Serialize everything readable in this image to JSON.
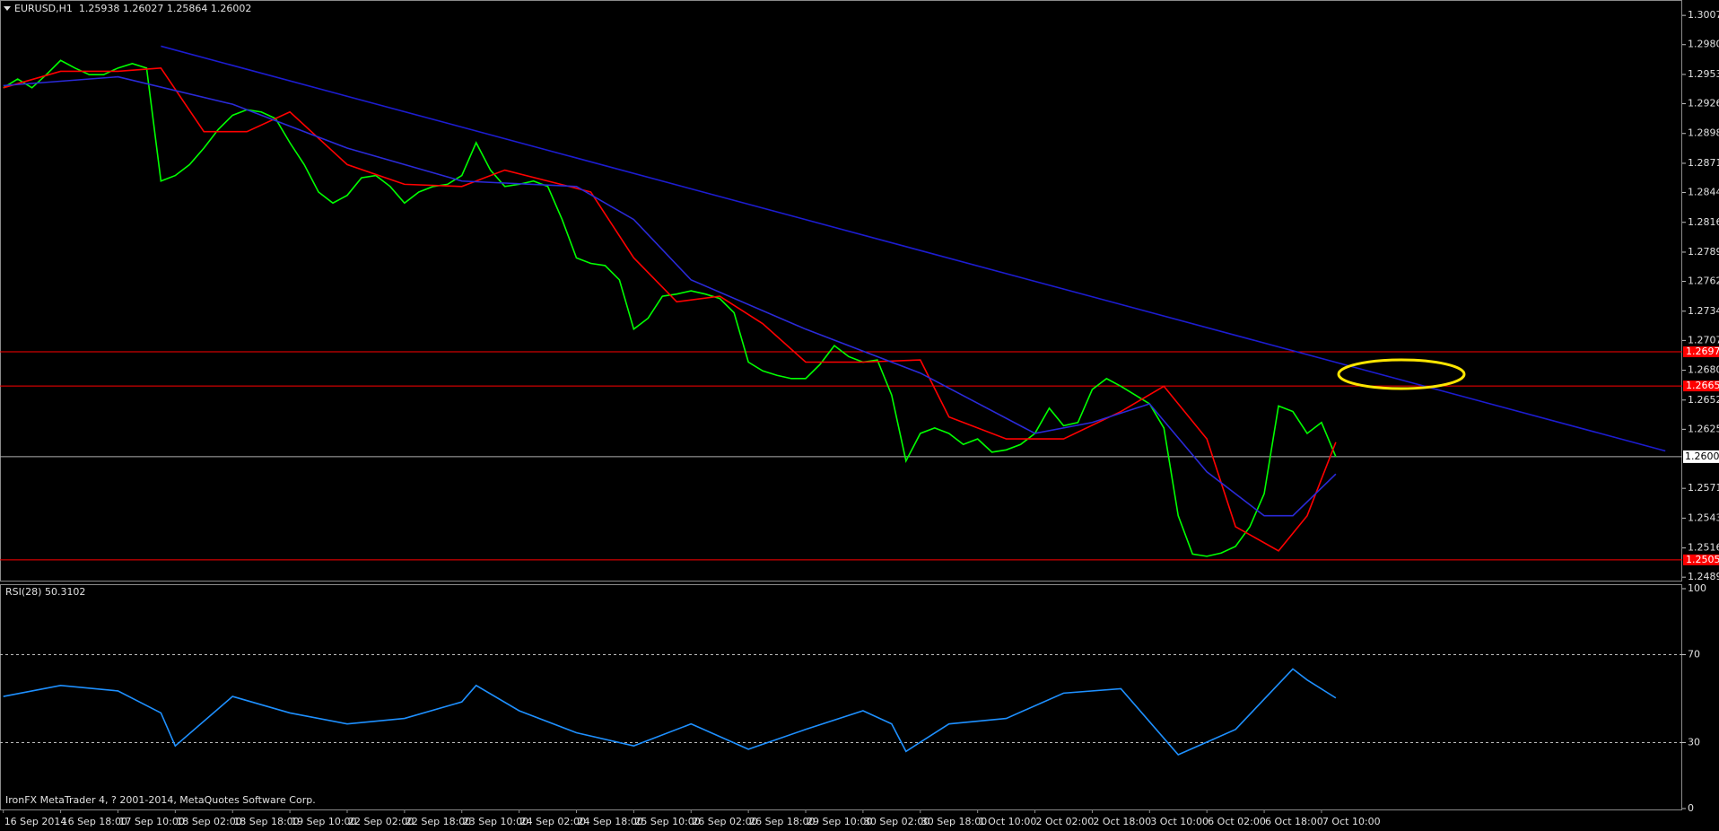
{
  "chart_data": [
    {
      "type": "line",
      "title": "EURUSD,H1  1.25938 1.26027 1.25864 1.26002",
      "categories": [
        "16 Sep 2014",
        null,
        null,
        null,
        "16 Sep 18:00",
        null,
        null,
        null,
        "17 Sep 10:00",
        null,
        null,
        null,
        "18 Sep 02:00",
        null,
        null,
        null,
        "18 Sep 18:00",
        null,
        null,
        null,
        "19 Sep 10:00",
        null,
        null,
        null,
        "22 Sep 02:00",
        null,
        null,
        null,
        "22 Sep 18:00",
        null,
        null,
        null,
        "23 Sep 10:00",
        null,
        null,
        null,
        "24 Sep 02:00",
        null,
        null,
        null,
        "24 Sep 18:00",
        null,
        null,
        null,
        "25 Sep 10:00",
        null,
        null,
        null,
        "26 Sep 02:00",
        null,
        null,
        null,
        "26 Sep 18:00",
        null,
        null,
        null,
        "29 Sep 10:00",
        null,
        null,
        null,
        "30 Sep 02:00",
        null,
        null,
        null,
        "30 Sep 18:00",
        null,
        null,
        null,
        "1 Oct 10:00",
        null,
        null,
        null,
        "2 Oct 02:00",
        null,
        null,
        null,
        "2 Oct 18:00",
        null,
        null,
        null,
        "3 Oct 10:00",
        null,
        null,
        null,
        "6 Oct 02:00",
        null,
        null,
        null,
        "6 Oct 18:00",
        null,
        null,
        null,
        "7 Oct 10:00",
        null,
        null,
        null,
        null,
        null,
        null,
        null,
        null,
        null,
        null,
        null,
        null,
        null,
        null,
        null,
        null,
        null,
        null,
        null,
        null,
        null,
        null,
        null,
        null
      ],
      "series": [
        {
          "color": "#00ff00",
          "values": [
            1.29407,
            1.29488,
            1.29407,
            1.29528,
            1.2966,
            1.29589,
            1.29528,
            1.29528,
            1.29589,
            1.2963,
            1.29589,
            1.28546,
            1.28597,
            1.28698,
            1.2885,
            1.29022,
            1.29153,
            1.29204,
            1.29184,
            1.29123,
            1.289,
            1.28698,
            1.28445,
            1.28343,
            1.28414,
            1.28576,
            1.28597,
            1.28496,
            1.28343,
            1.28445,
            1.28496,
            1.28516,
            1.28597,
            1.289,
            1.28647,
            1.28496,
            1.28516,
            1.28546,
            1.28496,
            1.28191,
            1.27837,
            1.27786,
            1.27766,
            1.27634,
            1.27179,
            1.2728,
            1.27483,
            1.27503,
            1.27533,
            1.27503,
            1.27462,
            1.27331,
            1.26875,
            1.26794,
            1.26753,
            1.26723,
            1.26723,
            1.26854,
            1.27027,
            1.26926,
            1.26875,
            1.26895,
            1.26571,
            1.25963,
            1.26217,
            1.26267,
            1.26217,
            1.26115,
            1.26166,
            1.26044,
            1.26065,
            1.26115,
            1.26217,
            1.2645,
            1.26288,
            1.26318,
            1.26622,
            1.26723,
            1.26652,
            1.26571,
            1.2649,
            1.26267,
            1.25457,
            1.25103,
            1.25083,
            1.25113,
            1.25174,
            1.25356,
            1.2566,
            1.2647,
            1.26419,
            1.26217,
            1.26318,
            1.26002,
            null,
            null,
            null,
            null,
            null,
            null,
            null,
            null,
            null,
            null,
            null,
            null,
            null,
            null,
            null,
            null,
            null,
            null,
            null,
            null,
            null,
            null,
            null
          ]
        },
        {
          "color": "#ff0000",
          "x": [
            0,
            4,
            8,
            11,
            14,
            17,
            20,
            24,
            28,
            32,
            35,
            38,
            41,
            44,
            47,
            50,
            53,
            56,
            60,
            64,
            66,
            70,
            74,
            78,
            81,
            84,
            86,
            89,
            91,
            93
          ],
          "values": [
            1.29407,
            1.29559,
            1.29559,
            1.29589,
            1.29002,
            1.29002,
            1.29184,
            1.28698,
            1.28516,
            1.28496,
            1.28647,
            1.28546,
            1.28445,
            1.27837,
            1.27432,
            1.27483,
            1.2723,
            1.26875,
            1.26875,
            1.26895,
            1.26369,
            1.26166,
            1.26166,
            1.26419,
            1.26652,
            1.26166,
            1.25356,
            1.25133,
            1.25457,
            1.26136
          ]
        },
        {
          "color": "#2a2ad8",
          "x": [
            0,
            8,
            16,
            24,
            32,
            40,
            44,
            48,
            56,
            64,
            72,
            76,
            80,
            84,
            88,
            90,
            93
          ],
          "values": [
            1.29427,
            1.29508,
            1.29255,
            1.2885,
            1.28546,
            1.28496,
            1.28191,
            1.27634,
            1.27179,
            1.26774,
            1.26217,
            1.26318,
            1.2649,
            1.25862,
            1.25457,
            1.25457,
            1.25842
          ]
        }
      ],
      "trend_line": {
        "color": "#1c1cd0",
        "x": [
          11,
          116
        ],
        "values": [
          1.29791,
          1.26055
        ]
      },
      "levels": [
        {
          "value": 1.2697,
          "label": "1.26970"
        },
        {
          "value": 1.26655,
          "label": "1.26655"
        },
        {
          "value": 1.2505,
          "label": "1.25050"
        }
      ],
      "level_color": "#ff0000",
      "current_price": 1.26002,
      "ylim": [
        1.2485,
        1.30217
      ],
      "yticks": [
        1.30075,
        1.29805,
        {
          "value": 1.2953,
          "label": "1.29530"
        },
        {
          "value": 1.2926,
          "label": "1.29260"
        },
        1.28985,
        {
          "value": 1.2871,
          "label": "1.28710"
        },
        {
          "value": 1.2844,
          "label": "1.28440"
        },
        1.28165,
        {
          "value": 1.2789,
          "label": "1.27890"
        },
        {
          "value": 1.2762,
          "label": "1.27620"
        },
        1.27345,
        1.27075,
        {
          "value": 1.268,
          "label": "1.26800"
        },
        1.26525,
        1.26255,
        {
          "value": 1.2571,
          "label": "1.25710"
        },
        1.25435,
        {
          "value": 1.2516,
          "label": "1.25160"
        },
        {
          "value": 1.2489,
          "label": "1.24890"
        }
      ],
      "grid": false
    },
    {
      "type": "line",
      "title": "RSI(28) 50.3102",
      "series": [
        {
          "color": "#1e90ff",
          "x": [
            0,
            4,
            8,
            11,
            12,
            16,
            20,
            24,
            28,
            32,
            33,
            36,
            40,
            44,
            48,
            52,
            56,
            60,
            62,
            63,
            66,
            70,
            74,
            78,
            82,
            86,
            90,
            91,
            93
          ],
          "values": [
            51,
            56,
            53.5,
            43.5,
            28.5,
            51,
            43.5,
            38.5,
            41,
            48.5,
            56,
            44.5,
            34.5,
            28.5,
            38.5,
            27,
            36,
            44.5,
            38.5,
            26,
            38.5,
            41,
            52.5,
            54.5,
            24.5,
            36,
            63.5,
            58.5,
            50.3
          ]
        }
      ],
      "ylim": [
        0,
        100
      ],
      "yticks": [
        0,
        30,
        70,
        100
      ],
      "grid": "dashed"
    }
  ],
  "footer": "IronFX MetaTrader 4, ? 2001-2014, MetaQuotes Software Corp."
}
